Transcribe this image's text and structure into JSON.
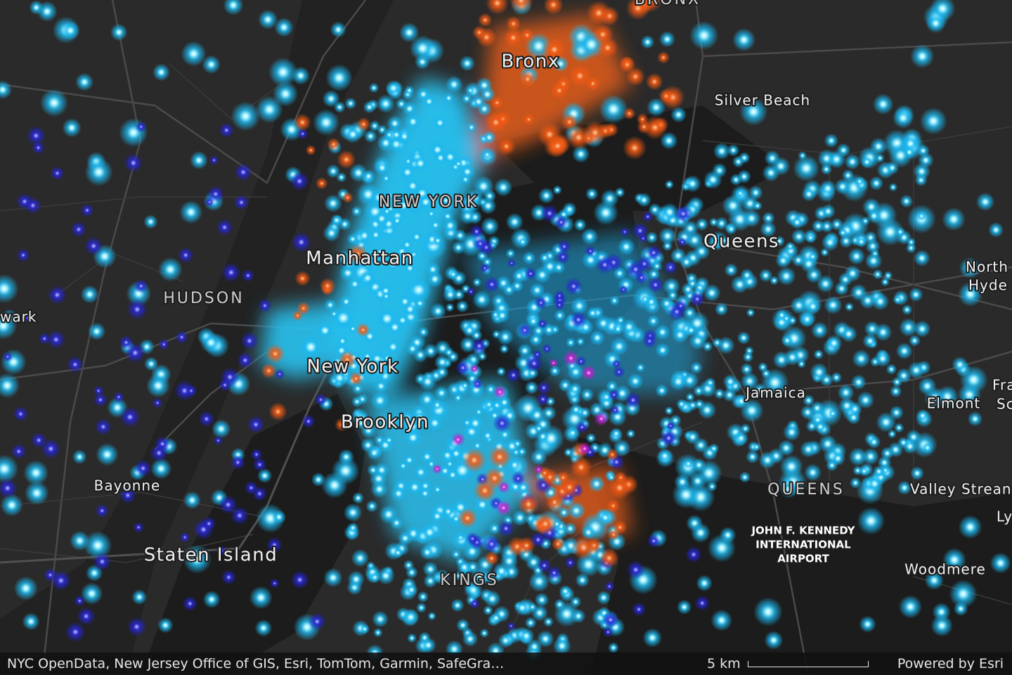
{
  "map": {
    "labels": [
      "BRONX",
      "Bronx",
      "Silver Beach",
      "NEW YORK",
      "Manhattan",
      "Queens",
      "North",
      "Hyde",
      "HUDSON",
      "wark",
      "New York",
      "Jamaica",
      "Elmont",
      "Fra",
      "Sc",
      "Brooklyn",
      "Bayonne",
      "QUEENS",
      "Valley Strean",
      "Ly",
      "JOHN F. KENNEDY",
      "INTERNATIONAL",
      "AIRPORT",
      "Staten Island",
      "Woodmere",
      "KINGS"
    ]
  },
  "attribution": "NYC OpenData, New Jersey Office of GIS, Esri, TomTom, Garmin, SafeGra…",
  "scale": "5 km",
  "powered_by": "Powered by Esri"
}
